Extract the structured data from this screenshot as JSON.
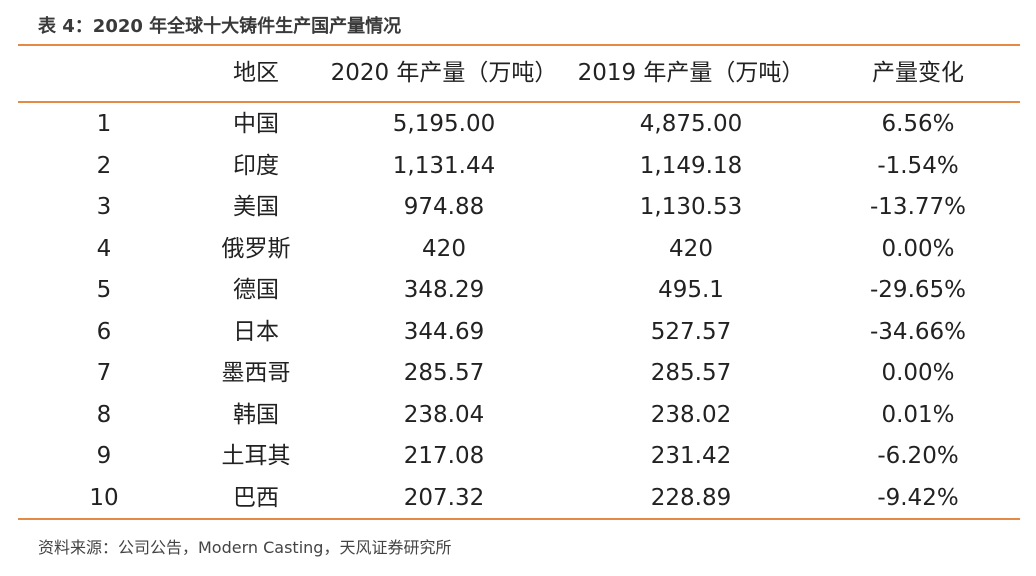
{
  "caption": "表 4：2020 年全球十大铸件生产国产量情况",
  "table": {
    "headers": [
      "",
      "地区",
      "2020 年产量（万吨）",
      "2019 年产量（万吨）",
      "产量变化"
    ],
    "rows": [
      [
        "1",
        "中国",
        "5,195.00",
        "4,875.00",
        "6.56%"
      ],
      [
        "2",
        "印度",
        "1,131.44",
        "1,149.18",
        "-1.54%"
      ],
      [
        "3",
        "美国",
        "974.88",
        "1,130.53",
        "-13.77%"
      ],
      [
        "4",
        "俄罗斯",
        "420",
        "420",
        "0.00%"
      ],
      [
        "5",
        "德国",
        "348.29",
        "495.1",
        "-29.65%"
      ],
      [
        "6",
        "日本",
        "344.69",
        "527.57",
        "-34.66%"
      ],
      [
        "7",
        "墨西哥",
        "285.57",
        "285.57",
        "0.00%"
      ],
      [
        "8",
        "韩国",
        "238.04",
        "238.02",
        "0.01%"
      ],
      [
        "9",
        "土耳其",
        "217.08",
        "231.42",
        "-6.20%"
      ],
      [
        "10",
        "巴西",
        "207.32",
        "228.89",
        "-9.42%"
      ]
    ]
  },
  "source": "资料来源：公司公告，Modern Casting，天风证券研究所",
  "colors": {
    "rule": "#e58a46",
    "text": "#222222"
  }
}
